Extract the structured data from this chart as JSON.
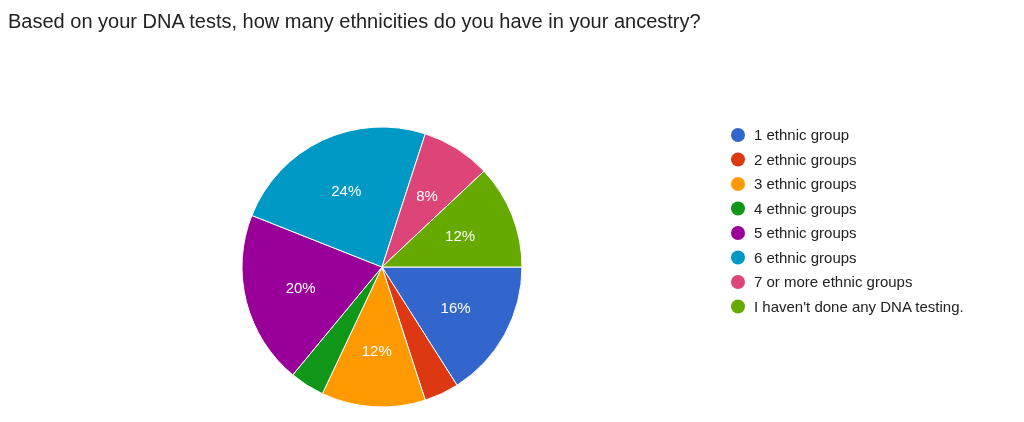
{
  "chart_data": {
    "type": "pie",
    "title": "Based on your DNA tests, how many ethnicities do you have in your ancestry?",
    "categories": [
      "1 ethnic group",
      "2 ethnic groups",
      "3 ethnic groups",
      "4 ethnic groups",
      "5 ethnic groups",
      "6 ethnic groups",
      "7 or more ethnic groups",
      "I haven't done any DNA testing."
    ],
    "values": [
      16,
      4,
      12,
      4,
      20,
      24,
      8,
      12
    ],
    "value_labels": [
      "16%",
      null,
      "12%",
      null,
      "20%",
      "24%",
      "8%",
      "12%"
    ],
    "colors": [
      "#3366cc",
      "#dc3912",
      "#ff9900",
      "#109618",
      "#990099",
      "#0099c6",
      "#dd4477",
      "#66aa00"
    ],
    "legend": "right"
  }
}
